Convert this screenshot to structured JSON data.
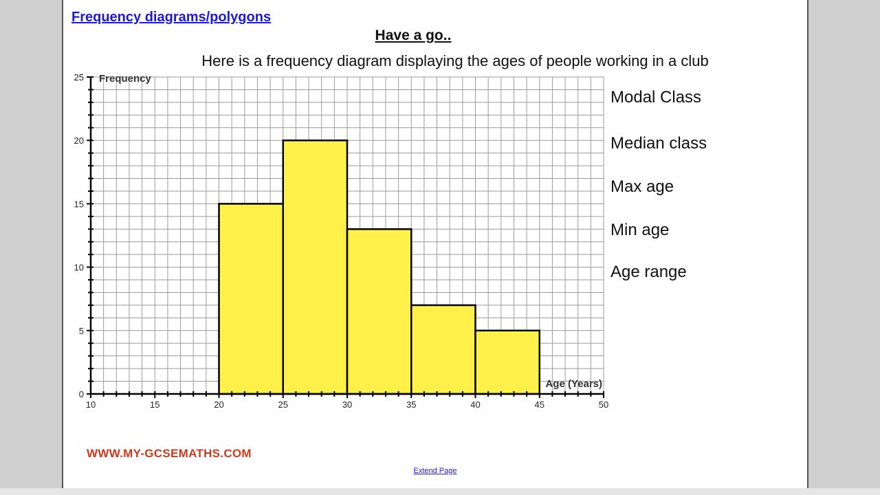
{
  "header": {
    "title_link": "Frequency diagrams/polygons",
    "subheading": "Have a go..",
    "intro": "Here is a frequency diagram displaying the ages of people working in a club"
  },
  "questions": [
    "Modal Class",
    "Median class",
    "Max age",
    "Min age",
    "Age range"
  ],
  "footer": {
    "watermark": "WWW.MY-GCSEMATHS.COM",
    "extend_link": "Extend Page"
  },
  "colors": {
    "bar_fill": "#fff04a",
    "bar_stroke": "#000000",
    "grid": "#9a9a9a",
    "link": "#1a1ad6",
    "watermark": "#c93a1e"
  },
  "chart_data": {
    "type": "bar",
    "title": "",
    "xlabel": "Age (Years)",
    "ylabel": "Frequency",
    "xlim": [
      10,
      50
    ],
    "ylim": [
      0,
      25
    ],
    "x_ticks": [
      10,
      15,
      20,
      25,
      30,
      35,
      40,
      45,
      50
    ],
    "y_ticks": [
      0,
      5,
      10,
      15,
      20,
      25
    ],
    "grid": true,
    "bins": [
      {
        "start": 20,
        "end": 25,
        "frequency": 15
      },
      {
        "start": 25,
        "end": 30,
        "frequency": 20
      },
      {
        "start": 30,
        "end": 35,
        "frequency": 13
      },
      {
        "start": 35,
        "end": 40,
        "frequency": 7
      },
      {
        "start": 40,
        "end": 45,
        "frequency": 5
      }
    ]
  }
}
